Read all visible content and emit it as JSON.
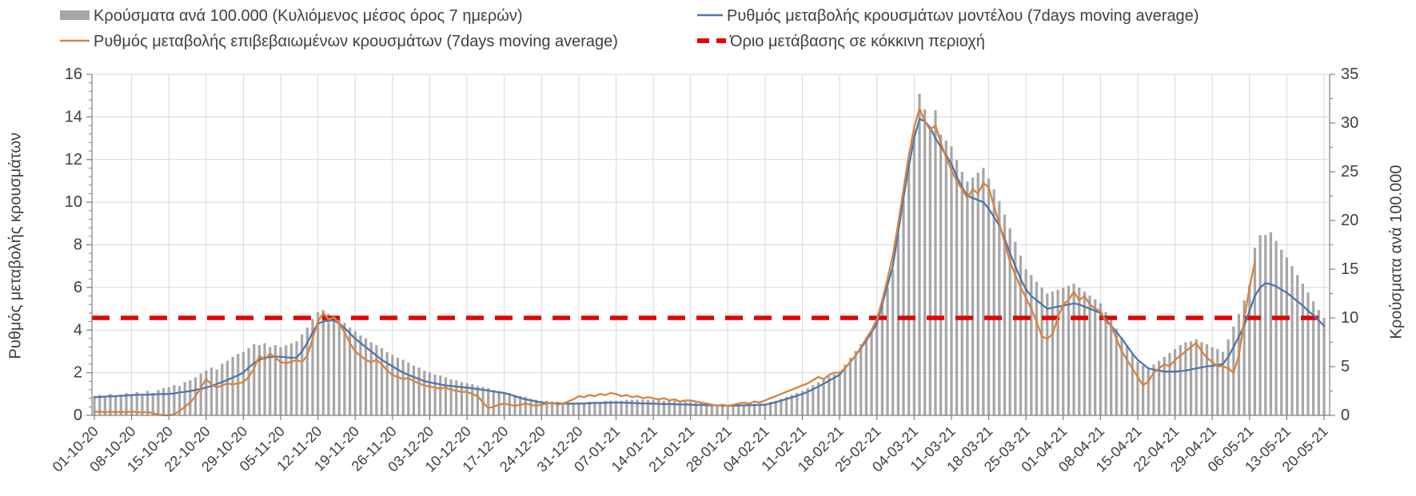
{
  "colors": {
    "bars": "#A6A6A6",
    "model": "#4D76AE",
    "confirmed": "#D9823F",
    "threshold": "#E60000",
    "grid": "#D9D9D9",
    "axis": "#808080",
    "text": "#3F3F3F"
  },
  "legend": {
    "items": [
      {
        "type": "bar-swatch",
        "label": "Κρούσματα ανά 100.000 (Κυλιόμενος μέσος όρος 7 ημερών)"
      },
      {
        "type": "line-swatch",
        "label": "Ρυθμός μεταβολής κρουσμάτων μοντέλου (7days moving average)"
      },
      {
        "type": "line-swatch",
        "label": "Ρυθμός μεταβολής επιβεβαιωμένων κρουσμάτων (7days moving average)"
      },
      {
        "type": "dashed-swatch",
        "label": "Όριο μετάβασης σε κόκκινη περιοχή"
      }
    ]
  },
  "chart_data": {
    "type": "bar+line combo",
    "title": "",
    "legend_position": "top",
    "grid": "horizontal and vertical light gray",
    "left_axis": {
      "label": "Ρυθμός μεταβολής κρουσμάτων",
      "min": 0,
      "max": 16,
      "tick_step": 2,
      "minor_step": 0.4
    },
    "right_axis": {
      "label": "Κρούσματα ανά 100.000",
      "min": 0,
      "max": 35,
      "tick_step": 5,
      "minor_step": 2.5
    },
    "x_axis": {
      "days_per_tick": 7,
      "n_days": 232,
      "tick_labels": [
        "01-10-20",
        "08-10-20",
        "15-10-20",
        "22-10-20",
        "29-10-20",
        "05-11-20",
        "12-11-20",
        "19-11-20",
        "26-11-20",
        "03-12-20",
        "10-12-20",
        "17-12-20",
        "24-12-20",
        "31-12-20",
        "07-01-21",
        "14-01-21",
        "21-01-21",
        "28-01-21",
        "04-02-21",
        "11-02-21",
        "18-02-21",
        "25-02-21",
        "04-03-21",
        "11-03-21",
        "18-03-21",
        "25-03-21",
        "01-04-21",
        "08-04-21",
        "15-04-21",
        "22-04-21",
        "29-04-21",
        "06-05-21",
        "13-05-21",
        "20-05-21"
      ]
    },
    "threshold_line": {
      "label": "Όριο μετάβασης σε κόκκινη περιοχή",
      "axis": "right",
      "value": 10,
      "style": "dashed"
    },
    "series": [
      {
        "name": "Κρούσματα ανά 100.000 (Κυλιόμενος μέσος όρος 7 ημερών)",
        "type": "bar",
        "axis": "right",
        "values": [
          2.0,
          2.1,
          1.9,
          2.2,
          2.0,
          2.1,
          2.3,
          2.1,
          2.4,
          2.2,
          2.5,
          2.3,
          2.6,
          2.8,
          2.9,
          3.1,
          3.0,
          3.4,
          3.6,
          3.9,
          4.3,
          4.6,
          4.9,
          4.7,
          5.3,
          5.6,
          6.0,
          6.3,
          6.5,
          6.9,
          7.3,
          7.2,
          7.4,
          7.0,
          7.2,
          7.0,
          7.2,
          7.4,
          7.6,
          8.3,
          9.0,
          9.9,
          10.6,
          10.8,
          10.4,
          10.2,
          9.9,
          9.5,
          9.0,
          8.6,
          8.2,
          7.9,
          7.5,
          7.2,
          6.9,
          6.5,
          6.2,
          5.9,
          5.7,
          5.4,
          5.1,
          4.9,
          4.6,
          4.4,
          4.2,
          4.1,
          3.9,
          3.7,
          3.6,
          3.4,
          3.3,
          3.2,
          3.0,
          2.9,
          2.8,
          2.6,
          2.5,
          2.4,
          2.3,
          2.1,
          2.0,
          1.9,
          1.7,
          1.6,
          1.5,
          1.5,
          1.4,
          1.4,
          1.3,
          1.3,
          1.3,
          1.3,
          1.3,
          1.4,
          1.4,
          1.4,
          1.5,
          1.5,
          1.5,
          1.5,
          1.6,
          1.6,
          1.6,
          1.6,
          1.6,
          1.6,
          1.6,
          1.5,
          1.5,
          1.5,
          1.4,
          1.4,
          1.4,
          1.3,
          1.3,
          1.2,
          1.2,
          1.1,
          1.1,
          1.0,
          1.0,
          1.1,
          1.1,
          1.1,
          1.2,
          1.2,
          1.2,
          1.4,
          1.5,
          1.7,
          1.9,
          2.1,
          2.3,
          2.5,
          2.8,
          3.1,
          3.4,
          3.7,
          4.0,
          4.2,
          4.5,
          5.2,
          5.9,
          6.6,
          7.3,
          8.0,
          8.7,
          9.5,
          11.3,
          13.1,
          15.0,
          18.6,
          22.2,
          25.8,
          29.4,
          33.0,
          31.4,
          29.6,
          31.3,
          28.8,
          28.2,
          27.6,
          26.2,
          25.0,
          24.0,
          24.4,
          24.9,
          25.4,
          24.3,
          23.2,
          22.0,
          20.6,
          19.2,
          17.8,
          16.4,
          15.0,
          14.4,
          13.7,
          13.1,
          12.5,
          12.7,
          12.9,
          13.1,
          13.3,
          13.5,
          13.1,
          12.7,
          12.3,
          11.9,
          11.5,
          10.6,
          9.8,
          8.9,
          8.0,
          7.2,
          6.3,
          5.5,
          5.1,
          4.8,
          5.2,
          5.6,
          6.0,
          6.4,
          6.8,
          7.2,
          7.5,
          7.6,
          7.8,
          7.5,
          7.3,
          7.0,
          6.8,
          6.5,
          7.8,
          9.1,
          10.4,
          11.8,
          13.4,
          17.2,
          18.5,
          18.5,
          18.8,
          17.9,
          17.0,
          16.2,
          15.3,
          14.4,
          13.5,
          12.6,
          11.7,
          10.8,
          10.0
        ]
      },
      {
        "name": "Ρυθμός μεταβολής κρουσμάτων μοντέλου (7days moving average)",
        "type": "line",
        "axis": "left",
        "values": [
          0.85,
          0.86,
          0.88,
          0.89,
          0.9,
          0.92,
          0.93,
          0.95,
          0.96,
          0.97,
          0.97,
          0.98,
          0.99,
          1.0,
          1.0,
          1.03,
          1.07,
          1.1,
          1.14,
          1.19,
          1.24,
          1.3,
          1.38,
          1.47,
          1.56,
          1.66,
          1.77,
          1.88,
          2.0,
          2.25,
          2.45,
          2.6,
          2.7,
          2.73,
          2.75,
          2.75,
          2.72,
          2.7,
          2.7,
          3.0,
          3.4,
          3.9,
          4.3,
          4.4,
          4.45,
          4.45,
          4.3,
          4.1,
          3.85,
          3.6,
          3.4,
          3.2,
          3.0,
          2.8,
          2.6,
          2.45,
          2.3,
          2.15,
          2.0,
          1.9,
          1.8,
          1.7,
          1.6,
          1.55,
          1.5,
          1.45,
          1.4,
          1.38,
          1.35,
          1.32,
          1.3,
          1.27,
          1.23,
          1.2,
          1.16,
          1.12,
          1.08,
          1.05,
          0.98,
          0.9,
          0.82,
          0.75,
          0.7,
          0.65,
          0.6,
          0.58,
          0.57,
          0.56,
          0.55,
          0.55,
          0.55,
          0.55,
          0.56,
          0.57,
          0.58,
          0.58,
          0.59,
          0.6,
          0.6,
          0.6,
          0.59,
          0.58,
          0.57,
          0.56,
          0.56,
          0.55,
          0.54,
          0.53,
          0.53,
          0.52,
          0.51,
          0.51,
          0.5,
          0.49,
          0.49,
          0.48,
          0.47,
          0.47,
          0.46,
          0.45,
          0.46,
          0.46,
          0.47,
          0.48,
          0.48,
          0.49,
          0.5,
          0.55,
          0.62,
          0.69,
          0.76,
          0.84,
          0.92,
          1.0,
          1.1,
          1.22,
          1.35,
          1.48,
          1.62,
          1.76,
          1.9,
          2.2,
          2.5,
          2.8,
          3.15,
          3.5,
          3.9,
          4.3,
          5.2,
          6.1,
          7.0,
          8.6,
          10.2,
          11.7,
          13.0,
          13.9,
          13.8,
          13.5,
          13.0,
          12.6,
          12.2,
          11.8,
          11.2,
          10.7,
          10.3,
          10.2,
          10.1,
          10.0,
          9.7,
          9.3,
          8.9,
          8.3,
          7.6,
          7.0,
          6.4,
          5.9,
          5.6,
          5.4,
          5.2,
          5.0,
          5.05,
          5.1,
          5.15,
          5.2,
          5.25,
          5.2,
          5.1,
          5.0,
          4.9,
          4.8,
          4.5,
          4.2,
          3.9,
          3.6,
          3.25,
          2.9,
          2.6,
          2.4,
          2.2,
          2.15,
          2.1,
          2.05,
          2.05,
          2.05,
          2.08,
          2.1,
          2.15,
          2.2,
          2.25,
          2.3,
          2.32,
          2.36,
          2.4,
          2.75,
          3.2,
          3.7,
          4.2,
          4.9,
          5.6,
          6.0,
          6.2,
          6.15,
          6.05,
          5.9,
          5.75,
          5.55,
          5.35,
          5.15,
          4.9,
          4.7,
          4.45,
          4.2
        ]
      },
      {
        "name": "Ρυθμός μεταβολής επιβεβαιωμένων κρουσμάτων (7days moving average)",
        "type": "line",
        "axis": "left",
        "values": [
          0.15,
          0.18,
          0.14,
          0.17,
          0.15,
          0.16,
          0.14,
          0.18,
          0.15,
          0.13,
          0.16,
          0.1,
          0.05,
          0.0,
          0.0,
          0.05,
          0.2,
          0.4,
          0.6,
          0.9,
          1.3,
          1.7,
          1.45,
          1.3,
          1.4,
          1.5,
          1.45,
          1.5,
          1.55,
          1.8,
          2.2,
          2.8,
          2.6,
          2.9,
          2.7,
          2.5,
          2.45,
          2.5,
          2.6,
          2.5,
          2.8,
          3.6,
          4.4,
          4.8,
          4.5,
          4.6,
          4.3,
          3.9,
          3.4,
          3.0,
          2.8,
          2.6,
          2.5,
          2.6,
          2.4,
          2.1,
          1.9,
          1.8,
          1.7,
          1.75,
          1.6,
          1.5,
          1.4,
          1.35,
          1.3,
          1.25,
          1.3,
          1.2,
          1.15,
          1.1,
          1.1,
          1.0,
          0.9,
          0.6,
          0.35,
          0.4,
          0.5,
          0.55,
          0.5,
          0.45,
          0.5,
          0.55,
          0.5,
          0.45,
          0.5,
          0.55,
          0.6,
          0.5,
          0.55,
          0.65,
          0.75,
          0.9,
          0.85,
          0.95,
          0.9,
          1.0,
          0.95,
          1.05,
          1.0,
          0.9,
          0.95,
          0.85,
          0.9,
          0.8,
          0.85,
          0.8,
          0.75,
          0.8,
          0.7,
          0.75,
          0.65,
          0.7,
          0.7,
          0.65,
          0.6,
          0.55,
          0.5,
          0.45,
          0.5,
          0.45,
          0.5,
          0.55,
          0.6,
          0.55,
          0.65,
          0.6,
          0.7,
          0.8,
          0.9,
          1.0,
          1.1,
          1.2,
          1.3,
          1.4,
          1.5,
          1.65,
          1.8,
          1.7,
          1.9,
          2.0,
          2.0,
          2.2,
          2.5,
          2.8,
          3.2,
          3.6,
          4.0,
          4.5,
          5.4,
          6.4,
          7.5,
          9.0,
          10.6,
          12.2,
          13.5,
          14.4,
          13.8,
          13.4,
          13.6,
          12.8,
          12.1,
          11.5,
          11.0,
          10.6,
          10.2,
          10.6,
          10.4,
          10.9,
          10.7,
          9.8,
          9.0,
          8.1,
          7.2,
          6.6,
          6.0,
          5.5,
          5.0,
          4.4,
          3.7,
          3.6,
          3.8,
          4.6,
          5.2,
          5.4,
          5.8,
          5.4,
          5.6,
          5.2,
          5.0,
          4.9,
          4.4,
          4.2,
          3.6,
          3.0,
          2.6,
          2.2,
          1.8,
          1.4,
          1.6,
          2.0,
          2.2,
          2.4,
          2.3,
          2.6,
          2.8,
          3.0,
          3.2,
          3.4,
          3.0,
          2.7,
          2.5,
          2.3,
          2.3,
          2.2,
          2.0,
          2.8,
          4.5,
          6.0,
          7.2,
          null,
          null,
          null,
          null,
          null,
          null,
          null,
          null,
          null,
          null,
          null,
          null,
          null
        ]
      }
    ]
  }
}
